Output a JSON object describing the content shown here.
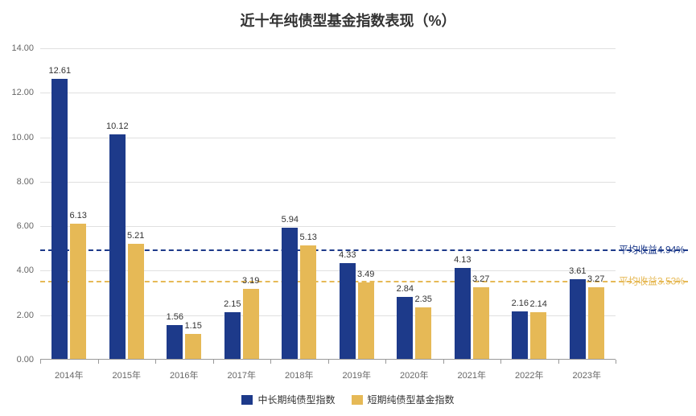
{
  "chart": {
    "type": "bar",
    "title": "近十年纯债型基金指数表现（%）",
    "title_fontsize": 18,
    "background_color": "#ffffff",
    "grid_color": "#e0e0e0",
    "text_color": "#333333",
    "axis_label_color": "#666666",
    "ylim": [
      0,
      14
    ],
    "ytick_step": 2,
    "yticks": [
      0.0,
      2.0,
      4.0,
      6.0,
      8.0,
      10.0,
      12.0,
      14.0
    ],
    "categories": [
      "2014年",
      "2015年",
      "2016年",
      "2017年",
      "2018年",
      "2019年",
      "2020年",
      "2021年",
      "2022年",
      "2023年"
    ],
    "series": [
      {
        "name": "中长期纯债型指数",
        "color": "#1d3a8a",
        "values": [
          12.61,
          10.12,
          1.56,
          2.15,
          5.94,
          4.33,
          2.84,
          4.13,
          2.16,
          3.61
        ]
      },
      {
        "name": "短期纯债型基金指数",
        "color": "#e6b956",
        "values": [
          6.13,
          5.21,
          1.15,
          3.19,
          5.13,
          3.49,
          2.35,
          3.27,
          2.14,
          3.27
        ]
      }
    ],
    "reference_lines": [
      {
        "label": "平均收益4.94%",
        "value": 4.94,
        "color": "#1d3a8a",
        "dash": "6,4"
      },
      {
        "label": "平均收益3.53%",
        "value": 3.53,
        "color": "#e6b956",
        "dash": "6,4"
      }
    ],
    "bar_width_ratio": 0.28,
    "bar_gap_ratio": 0.04,
    "label_fontsize": 11,
    "legend_fontsize": 12,
    "legend_position": "bottom-center"
  }
}
